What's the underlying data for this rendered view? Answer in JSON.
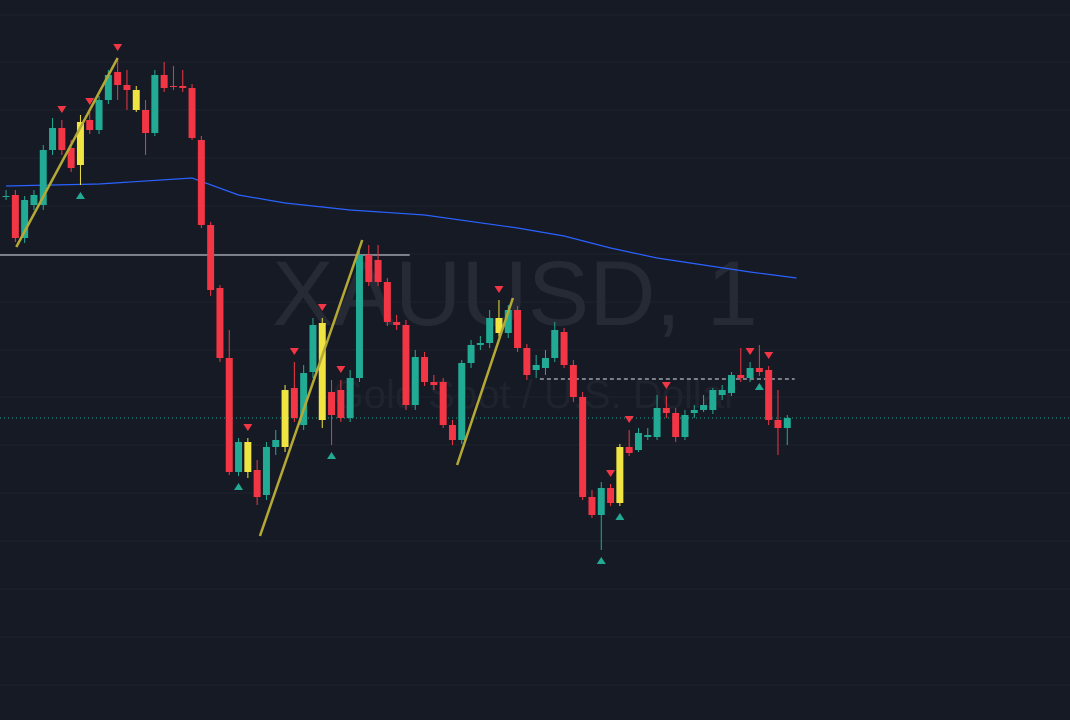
{
  "chart_data": {
    "type": "candlestick",
    "watermark": "XAUUSD, 1",
    "watermark_subtitle": "Gold Spot / U.S. Dollar",
    "background": "#161a25",
    "up_color": "#22ab94",
    "down_color": "#f23645",
    "highlight_color": "#f0e442",
    "xlim": [
      -0.65,
      114.4
    ],
    "ylim": [
      0,
      720
    ],
    "candles": [
      [
        524,
        530,
        520,
        524
      ],
      [
        525,
        530,
        478,
        482
      ],
      [
        482,
        524,
        477,
        520
      ],
      [
        515,
        530,
        510,
        525
      ],
      [
        515,
        575,
        510,
        570
      ],
      [
        570,
        602,
        565,
        592
      ],
      [
        592,
        600,
        565,
        570
      ],
      [
        572,
        580,
        548,
        552
      ],
      [
        555,
        605,
        535,
        598
      ],
      [
        600,
        608,
        586,
        590
      ],
      [
        590,
        624,
        586,
        620
      ],
      [
        620,
        650,
        616,
        645
      ],
      [
        648,
        662,
        620,
        635
      ],
      [
        635,
        650,
        610,
        630
      ],
      [
        630,
        634,
        608,
        610
      ],
      [
        610,
        620,
        565,
        587
      ],
      [
        587,
        650,
        584,
        645
      ],
      [
        645,
        658,
        628,
        632
      ],
      [
        634,
        654,
        630,
        633
      ],
      [
        634,
        650,
        628,
        632
      ],
      [
        632,
        636,
        580,
        582
      ],
      [
        580,
        584,
        492,
        495
      ],
      [
        495,
        498,
        424,
        430
      ],
      [
        432,
        435,
        358,
        362
      ],
      [
        362,
        390,
        245,
        248
      ],
      [
        248,
        282,
        244,
        278
      ],
      [
        278,
        282,
        242,
        248
      ],
      [
        250,
        260,
        215,
        223
      ],
      [
        225,
        278,
        220,
        273
      ],
      [
        273,
        290,
        265,
        280
      ],
      [
        273,
        335,
        268,
        330
      ],
      [
        332,
        358,
        298,
        302
      ],
      [
        295,
        355,
        290,
        347
      ],
      [
        348,
        402,
        342,
        395
      ],
      [
        397,
        402,
        292,
        300
      ],
      [
        328,
        340,
        275,
        305
      ],
      [
        330,
        340,
        298,
        302
      ],
      [
        302,
        350,
        298,
        342
      ],
      [
        342,
        470,
        338,
        465
      ],
      [
        465,
        475,
        434,
        438
      ],
      [
        460,
        475,
        434,
        438
      ],
      [
        438,
        442,
        394,
        398
      ],
      [
        398,
        405,
        390,
        395
      ],
      [
        395,
        400,
        310,
        315
      ],
      [
        315,
        370,
        310,
        363
      ],
      [
        363,
        368,
        334,
        338
      ],
      [
        338,
        345,
        330,
        335
      ],
      [
        338,
        342,
        292,
        295
      ],
      [
        295,
        300,
        275,
        280
      ],
      [
        280,
        360,
        276,
        357
      ],
      [
        357,
        380,
        352,
        375
      ],
      [
        375,
        384,
        370,
        377
      ],
      [
        377,
        410,
        372,
        402
      ],
      [
        402,
        420,
        380,
        387
      ],
      [
        387,
        415,
        382,
        410
      ],
      [
        410,
        414,
        368,
        372
      ],
      [
        372,
        376,
        340,
        345
      ],
      [
        350,
        365,
        342,
        355
      ],
      [
        352,
        370,
        345,
        362
      ],
      [
        362,
        398,
        358,
        390
      ],
      [
        388,
        392,
        352,
        355
      ],
      [
        355,
        360,
        318,
        323
      ],
      [
        323,
        328,
        220,
        223
      ],
      [
        223,
        230,
        202,
        205
      ],
      [
        205,
        238,
        170,
        232
      ],
      [
        232,
        236,
        214,
        217
      ],
      [
        217,
        276,
        214,
        273
      ],
      [
        273,
        290,
        264,
        267
      ],
      [
        270,
        292,
        268,
        287
      ],
      [
        283,
        292,
        280,
        285
      ],
      [
        283,
        325,
        280,
        312
      ],
      [
        312,
        324,
        302,
        307
      ],
      [
        307,
        312,
        278,
        283
      ],
      [
        283,
        310,
        280,
        305
      ],
      [
        307,
        315,
        302,
        310
      ],
      [
        310,
        325,
        308,
        315
      ],
      [
        310,
        332,
        306,
        330
      ],
      [
        325,
        335,
        320,
        330
      ],
      [
        327,
        348,
        324,
        345
      ],
      [
        345,
        372,
        338,
        342
      ],
      [
        342,
        358,
        338,
        352
      ],
      [
        352,
        375,
        344,
        348
      ],
      [
        350,
        354,
        295,
        300
      ],
      [
        300,
        330,
        265,
        292
      ],
      [
        292,
        305,
        275,
        302
      ]
    ],
    "highlighted_candles": [
      8,
      14,
      26,
      30,
      34,
      53,
      66
    ],
    "sell_signals": [
      6,
      9,
      12,
      26,
      31,
      34,
      36,
      53,
      65,
      67,
      71,
      80,
      82
    ],
    "buy_signals": [
      8,
      25,
      35,
      64,
      66,
      81
    ],
    "moving_average": {
      "color": "#2962ff",
      "x": [
        0,
        10,
        20,
        25,
        30,
        37,
        45,
        55,
        60,
        65,
        70,
        75,
        80,
        85
      ],
      "values": [
        534,
        536,
        542,
        525,
        517,
        510,
        505,
        492,
        484,
        472,
        462,
        455,
        448,
        442
      ]
    },
    "trendlines": [
      {
        "color": "#b5a935",
        "x": [
          1.1,
          12.0
        ],
        "values": [
          473,
          662
        ]
      },
      {
        "color": "#b5a935",
        "x": [
          27.3,
          38.3
        ],
        "values": [
          184,
          480
        ]
      },
      {
        "color": "#b5a935",
        "x": [
          48.5,
          54.5
        ],
        "values": [
          255,
          422
        ]
      }
    ],
    "levels": [
      {
        "value": 465,
        "x": [
          -0.65,
          43.4
        ],
        "style": "solid",
        "color": "#e0e3eb"
      },
      {
        "value": 341,
        "x": [
          57.4,
          84.8
        ],
        "style": "dashed",
        "color": "#e0e3eb"
      },
      {
        "value": 302,
        "x": [
          -0.65,
          114.4
        ],
        "style": "dotted",
        "color": "#22ab94"
      }
    ]
  }
}
